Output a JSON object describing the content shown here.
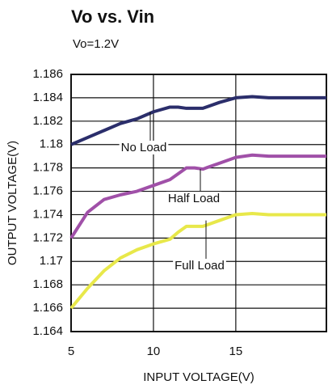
{
  "chart_data": {
    "type": "line",
    "title": "Vo vs. Vin",
    "subtitle": "Vo=1.2V",
    "x_label": "INPUT VOLTAGE(V)",
    "y_label": "OUTPUT VOLTAGE(V)",
    "x": [
      5,
      6,
      7,
      8,
      9,
      10,
      11,
      11.5,
      12,
      12.5,
      13,
      14,
      15,
      16,
      17,
      20.5
    ],
    "series": [
      {
        "name": "No Load",
        "color": "#2b2e6b",
        "values": [
          1.18,
          1.1806,
          1.1812,
          1.1818,
          1.1822,
          1.1828,
          1.1832,
          1.1832,
          1.1831,
          1.1831,
          1.1831,
          1.1836,
          1.184,
          1.1841,
          1.184,
          1.184
        ]
      },
      {
        "name": "Half Load",
        "color": "#a050a8",
        "values": [
          1.172,
          1.1742,
          1.1753,
          1.1757,
          1.176,
          1.1765,
          1.177,
          1.1775,
          1.178,
          1.178,
          1.1779,
          1.1784,
          1.1789,
          1.1791,
          1.179,
          1.179
        ]
      },
      {
        "name": "Full Load",
        "color": "#e8e84a",
        "values": [
          1.166,
          1.1677,
          1.1692,
          1.1703,
          1.171,
          1.1715,
          1.1719,
          1.1725,
          1.173,
          1.173,
          1.173,
          1.1735,
          1.174,
          1.1741,
          1.174,
          1.174
        ]
      }
    ],
    "xlim": [
      5,
      20.5
    ],
    "xticks": [
      5,
      10,
      15
    ],
    "ylim": [
      1.164,
      1.186
    ],
    "yticks": [
      1.164,
      1.166,
      1.168,
      1.17,
      1.172,
      1.174,
      1.176,
      1.178,
      1.18,
      1.182,
      1.184,
      1.186
    ],
    "grid": true
  }
}
